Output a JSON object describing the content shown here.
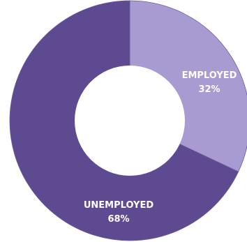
{
  "chart_data": {
    "type": "pie",
    "variant": "donut",
    "slices": [
      {
        "label": "EMPLOYED",
        "value": 32,
        "value_label": "32%",
        "color": "#a89bd1"
      },
      {
        "label": "UNEMPLOYED",
        "value": 68,
        "value_label": "68%",
        "color": "#5e4a91"
      }
    ],
    "center_color": "#ffffff",
    "label_color": "#ffffff",
    "start_angle_deg": 0,
    "direction": "clockwise",
    "legend": "none"
  }
}
